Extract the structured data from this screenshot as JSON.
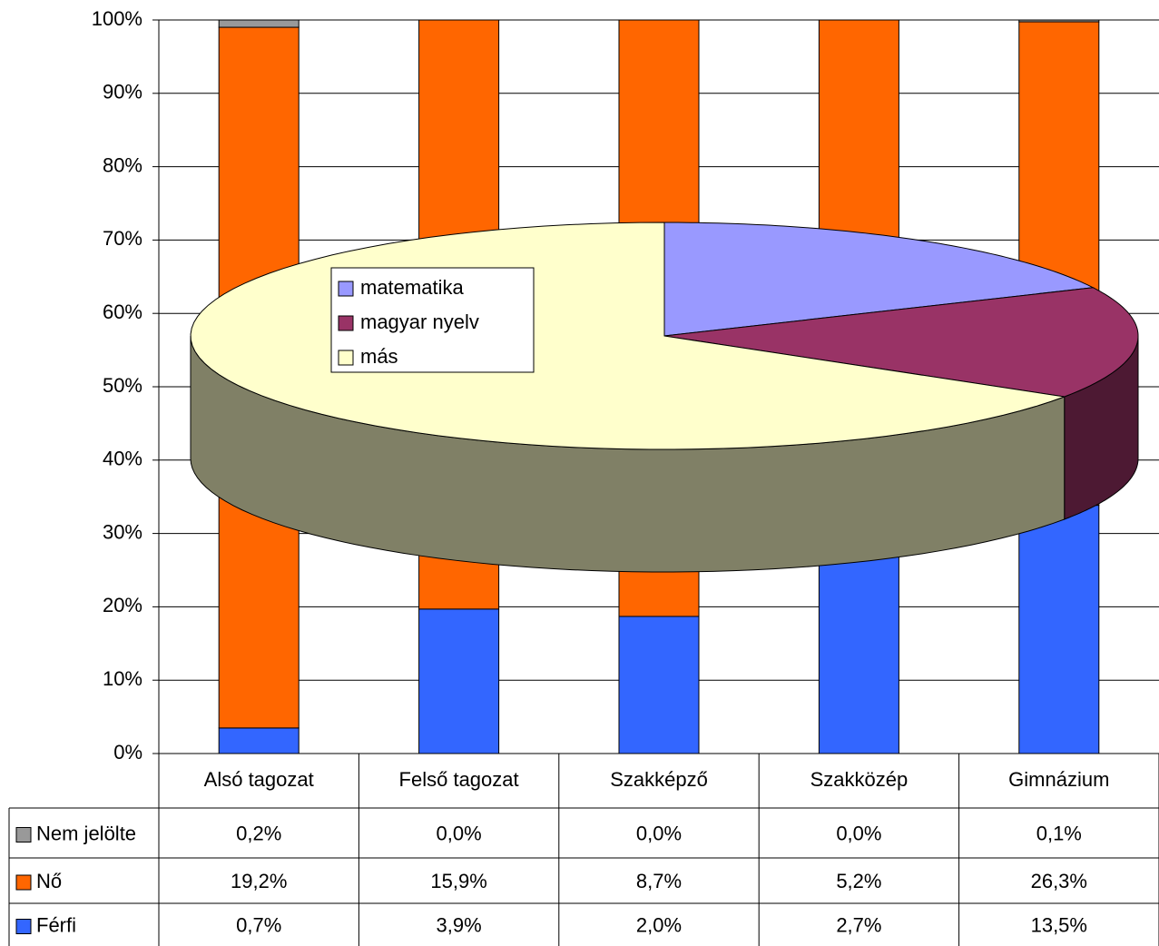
{
  "chart_data": [
    {
      "type": "bar",
      "stacked": "percent",
      "categories": [
        "Alsó tagozat",
        "Felső tagozat",
        "Szakképző",
        "Szakközép",
        "Gimnázium"
      ],
      "series": [
        {
          "name": "Nem jelölte",
          "color": "#999999",
          "values": [
            0.2,
            0.0,
            0.0,
            0.0,
            0.1
          ],
          "value_labels": [
            "0,2%",
            "0,0%",
            "0,0%",
            "0,0%",
            "0,1%"
          ]
        },
        {
          "name": "Nő",
          "color": "#ff6600",
          "values": [
            19.2,
            15.9,
            8.7,
            5.2,
            26.3
          ],
          "value_labels": [
            "19,2%",
            "15,9%",
            "8,7%",
            "5,2%",
            "26,3%"
          ]
        },
        {
          "name": "Férfi",
          "color": "#3366ff",
          "values": [
            0.7,
            3.9,
            2.0,
            2.7,
            13.5
          ],
          "value_labels": [
            "0,7%",
            "3,9%",
            "2,0%",
            "2,7%",
            "13,5%"
          ]
        }
      ],
      "ylim": [
        0,
        100
      ],
      "yticks": [
        {
          "value": 0,
          "label": "0%"
        },
        {
          "value": 10,
          "label": "10%"
        },
        {
          "value": 20,
          "label": "20%"
        },
        {
          "value": 30,
          "label": "30%"
        },
        {
          "value": 40,
          "label": "40%"
        },
        {
          "value": 50,
          "label": "50%"
        },
        {
          "value": 60,
          "label": "60%"
        },
        {
          "value": 70,
          "label": "70%"
        },
        {
          "value": 80,
          "label": "80%"
        },
        {
          "value": 90,
          "label": "90%"
        },
        {
          "value": 100,
          "label": "100%"
        }
      ],
      "grid": true
    },
    {
      "type": "pie3d",
      "categories": [
        "matematika",
        "magyar nyelv",
        "más"
      ],
      "values": [
        18,
        16,
        66
      ],
      "colors": [
        "#9999ff",
        "#993366",
        "#ffffcc"
      ],
      "side_colors": [
        "#4d4d80",
        "#4d1933",
        "#808066"
      ]
    }
  ]
}
